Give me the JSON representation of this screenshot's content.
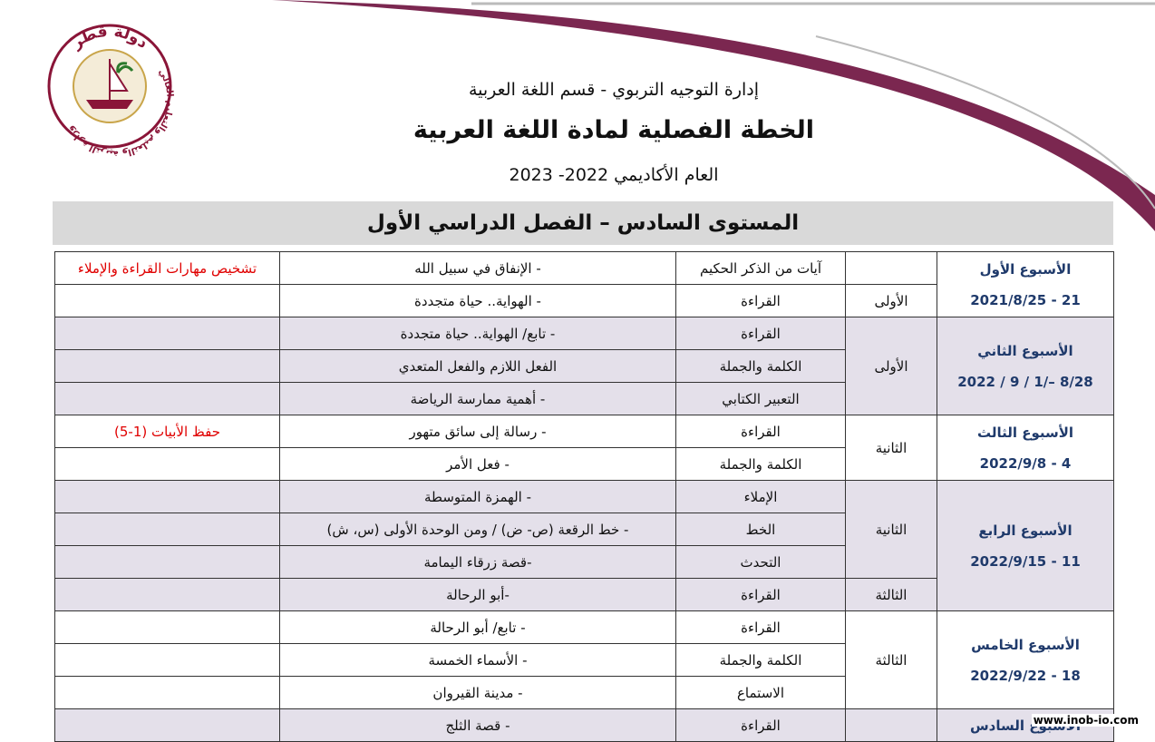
{
  "logo": {
    "country": "دولة قطر",
    "ministry": "وزارة التربية والتعليم والتعليم العالي"
  },
  "header": {
    "department": "إدارة التوجيه التربوي - قسم اللغة العربية",
    "title": "الخطة الفصلية لمادة اللغة العربية",
    "year": "العام الأكاديمي 2022- 2023"
  },
  "banner": "المستوى السادس – الفصل الدراسي الأول",
  "table": {
    "weeks": [
      {
        "name": "الأسبوع الأول",
        "dates": "21 - 2021/8/25",
        "units": [
          {
            "rows": [
              {
                "branch": "آيات من الذكر الحكيم",
                "lesson": "- الإنفاق في سبيل الله",
                "note": "تشخيص مهارات القراءة والإملاء"
              }
            ]
          },
          {
            "name": "الأولى",
            "rows": [
              {
                "branch": "القراءة",
                "lesson": "- الهواية.. حياة متجددة"
              }
            ]
          }
        ]
      },
      {
        "name": "الأسبوع الثاني",
        "dates": "8/28 –/1 / 9 / 2022",
        "units": [
          {
            "name": "الأولى",
            "rows": [
              {
                "branch": "القراءة",
                "lesson": "- تابع/ الهواية.. حياة متجددة"
              },
              {
                "branch": "الكلمة والجملة",
                "lesson": "الفعل اللازم والفعل المتعدي"
              },
              {
                "branch": "التعبير الكتابي",
                "lesson": "- أهمية ممارسة الرياضة"
              }
            ]
          }
        ]
      },
      {
        "name": "الأسبوع الثالث",
        "dates": "4 - 2022/9/8",
        "units": [
          {
            "name": "الثانية",
            "rows": [
              {
                "branch": "القراءة",
                "lesson": "- رسالة إلى سائق متهور",
                "note": "حفظ الأبيات (1-5)"
              },
              {
                "branch": "الكلمة والجملة",
                "lesson": "- فعل الأمر"
              }
            ]
          }
        ]
      },
      {
        "name": "الأسبوع الرابع",
        "dates": "11 - 2022/9/15",
        "units": [
          {
            "name": "الثانية",
            "rows": [
              {
                "branch": "الإملاء",
                "lesson": "- الهمزة المتوسطة"
              },
              {
                "branch": "الخط",
                "lesson": "- خط الرقعة (ص- ض) / ومن الوحدة الأولى (س، ش)"
              },
              {
                "branch": "التحدث",
                "lesson": "-قصة زرقاء اليمامة"
              }
            ]
          },
          {
            "name": "الثالثة",
            "rows": [
              {
                "branch": "القراءة",
                "lesson": "-أبو الرحالة"
              }
            ]
          }
        ]
      },
      {
        "name": "الأسبوع الخامس",
        "dates": "18 - 2022/9/22",
        "units": [
          {
            "name": "الثالثة",
            "rows": [
              {
                "branch": "القراءة",
                "lesson": "- تابع/ أبو الرحالة"
              },
              {
                "branch": "الكلمة والجملة",
                "lesson": "- الأسماء الخمسة"
              },
              {
                "branch": "الاستماع",
                "lesson": "- مدينة القيروان"
              }
            ]
          }
        ]
      },
      {
        "name": "الأسبوع السادس",
        "units": [
          {
            "rows": [
              {
                "branch": "القراءة",
                "lesson": "- قصة الثلج"
              }
            ]
          }
        ]
      }
    ]
  },
  "watermark": "www.inob-io.com"
}
